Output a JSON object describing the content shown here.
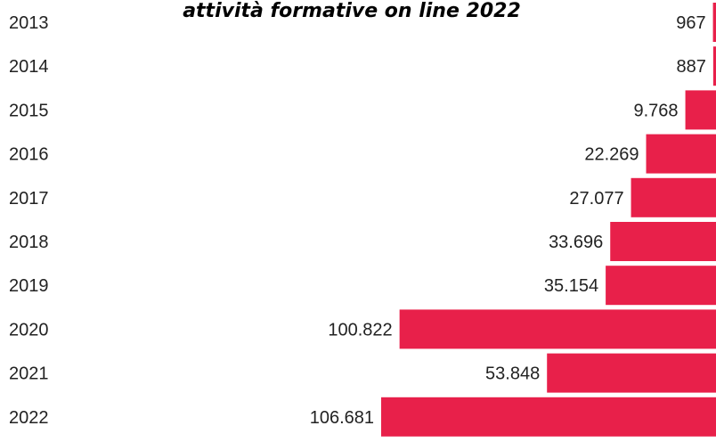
{
  "chart_data": {
    "type": "bar",
    "orientation": "horizontal",
    "bar_alignment": "right",
    "title": "attività formative on line 2022",
    "categories": [
      "2013",
      "2014",
      "2015",
      "2016",
      "2017",
      "2018",
      "2019",
      "2020",
      "2021",
      "2022"
    ],
    "values": [
      967,
      887,
      9768,
      22269,
      27077,
      33696,
      35154,
      100822,
      53848,
      106681
    ],
    "value_labels": [
      "967",
      "887",
      "9.768",
      "22.269",
      "27.077",
      "33.696",
      "35.154",
      "100.822",
      "53.848",
      "106.681"
    ],
    "bar_color": "#E8204A",
    "grid": false,
    "legend": "none"
  }
}
